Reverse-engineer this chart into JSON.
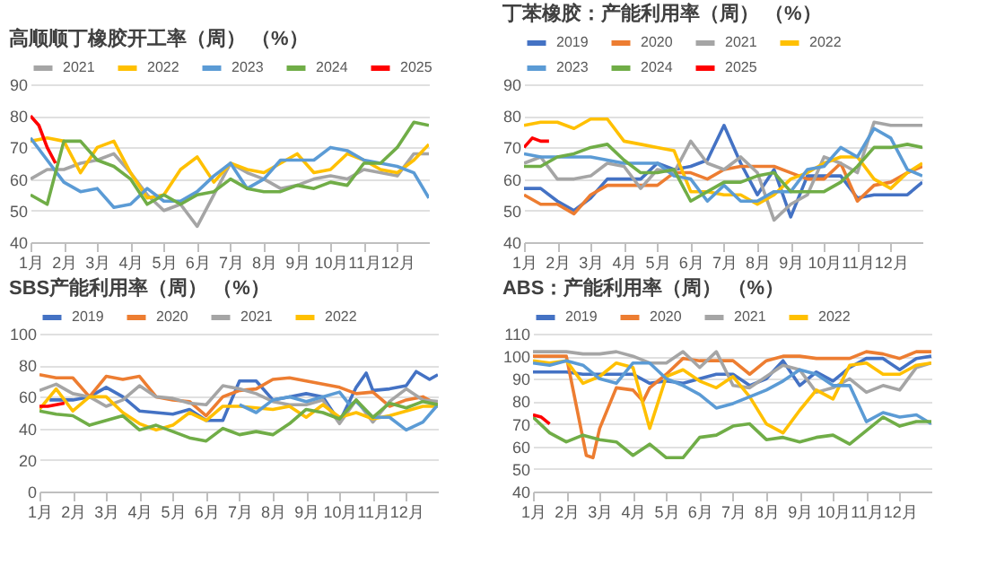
{
  "chart_data": [
    {
      "type": "line",
      "title": "高顺顺丁橡胶开工率（周） （%）",
      "legend": "top",
      "grid": "y",
      "x": [
        1,
        1.5,
        2,
        2.5,
        3,
        3.5,
        4,
        4.5,
        5,
        5.5,
        6,
        6.5,
        7,
        7.5,
        8,
        8.5,
        9,
        9.5,
        10,
        10.5,
        11,
        11.5,
        12,
        12.5,
        12.95
      ],
      "xlim": [
        1,
        12.95
      ],
      "xticks": [
        {
          "value": 1,
          "label": "1月"
        },
        {
          "value": 2,
          "label": "2月"
        },
        {
          "value": 3,
          "label": "3月"
        },
        {
          "value": 4,
          "label": "4月"
        },
        {
          "value": 5,
          "label": "5月"
        },
        {
          "value": 6,
          "label": "6月"
        },
        {
          "value": 7,
          "label": "7月"
        },
        {
          "value": 8,
          "label": "8月"
        },
        {
          "value": 9,
          "label": "9月"
        },
        {
          "value": 10,
          "label": "10月"
        },
        {
          "value": 11,
          "label": "11月"
        },
        {
          "value": 12,
          "label": "12月"
        }
      ],
      "ylim": [
        40,
        90
      ],
      "yticks": [
        40,
        50,
        60,
        70,
        80,
        90
      ],
      "series": [
        {
          "name": "2021",
          "color": "#a5a5a5",
          "values": [
            60,
            63,
            63,
            65,
            66,
            68,
            62,
            55,
            50,
            52,
            45,
            55,
            65,
            62,
            60,
            57,
            58,
            60,
            61,
            60,
            63,
            62,
            61,
            68,
            68
          ]
        },
        {
          "name": "2022",
          "color": "#ffc000",
          "values": [
            72,
            73,
            72,
            62,
            70,
            72,
            62,
            54,
            55,
            63,
            67,
            59,
            65,
            63,
            62,
            65,
            68,
            62,
            63,
            68,
            66,
            63,
            62,
            66,
            71
          ]
        },
        {
          "name": "2023",
          "color": "#5b9bd5",
          "values": [
            73,
            66,
            59,
            56,
            57,
            51,
            52,
            57,
            53,
            53,
            56,
            61,
            65,
            57,
            60,
            66,
            66,
            66,
            70,
            69,
            66,
            65,
            64,
            62,
            54
          ]
        },
        {
          "name": "2024",
          "color": "#70ad47",
          "values": [
            55,
            52,
            72,
            72,
            66,
            64,
            60,
            52,
            55,
            52,
            55,
            56,
            60,
            57,
            56,
            56,
            58,
            57,
            59,
            58,
            65,
            65,
            70,
            78,
            77
          ]
        },
        {
          "name": "2025",
          "color": "#ff0000",
          "x": [
            1,
            1.25,
            1.5,
            1.75
          ],
          "values": [
            80,
            77,
            70,
            65
          ]
        }
      ]
    },
    {
      "type": "line",
      "title": "丁苯橡胶：产能利用率（周） （%）",
      "legend": "top",
      "grid": "y",
      "x": [
        1,
        1.5,
        2,
        2.5,
        3,
        3.5,
        4,
        4.5,
        5,
        5.5,
        6,
        6.5,
        7,
        7.5,
        8,
        8.5,
        9,
        9.5,
        10,
        10.5,
        11,
        11.5,
        12,
        12.5,
        12.95
      ],
      "xlim": [
        1,
        12.95
      ],
      "xticks": [
        {
          "value": 1,
          "label": "1月"
        },
        {
          "value": 2,
          "label": "2月"
        },
        {
          "value": 3,
          "label": "3月"
        },
        {
          "value": 4,
          "label": "4月"
        },
        {
          "value": 5,
          "label": "5月"
        },
        {
          "value": 6,
          "label": "6月"
        },
        {
          "value": 7,
          "label": "7月"
        },
        {
          "value": 8,
          "label": "8月"
        },
        {
          "value": 9,
          "label": "9月"
        },
        {
          "value": 10,
          "label": "10月"
        },
        {
          "value": 11,
          "label": "11月"
        },
        {
          "value": 12,
          "label": "12月"
        }
      ],
      "ylim": [
        40,
        90
      ],
      "yticks": [
        40,
        50,
        60,
        70,
        80,
        90
      ],
      "series": [
        {
          "name": "2019",
          "color": "#4472c4",
          "values": [
            57,
            57,
            53,
            50,
            54,
            60,
            60,
            60,
            65,
            63,
            64,
            66,
            77,
            65,
            55,
            63,
            48,
            61,
            61,
            61,
            54,
            55,
            55,
            55,
            59
          ]
        },
        {
          "name": "2020",
          "color": "#ed7d31",
          "values": [
            55,
            52,
            52,
            49,
            55,
            58,
            58,
            58,
            58,
            62,
            62,
            60,
            63,
            64,
            64,
            64,
            62,
            60,
            60,
            65,
            53,
            58,
            59,
            62,
            64
          ]
        },
        {
          "name": "2021",
          "color": "#a5a5a5",
          "values": [
            65,
            67,
            60,
            60,
            61,
            65,
            64,
            57,
            63,
            62,
            72,
            65,
            63,
            67,
            62,
            47,
            52,
            55,
            67,
            65,
            62,
            78,
            77,
            77,
            77
          ]
        },
        {
          "name": "2022",
          "color": "#ffc000",
          "values": [
            77,
            78,
            78,
            76,
            79,
            79,
            72,
            71,
            70,
            69,
            56,
            56,
            55,
            55,
            52,
            55,
            60,
            62,
            65,
            67,
            67,
            60,
            57,
            62,
            65
          ]
        },
        {
          "name": "2023",
          "color": "#5b9bd5",
          "values": [
            68,
            67,
            67,
            67,
            67,
            66,
            65,
            65,
            65,
            61,
            60,
            53,
            58,
            53,
            53,
            56,
            56,
            63,
            64,
            70,
            67,
            76,
            73,
            63,
            61
          ]
        },
        {
          "name": "2024",
          "color": "#70ad47",
          "values": [
            64,
            64,
            67,
            68,
            70,
            71,
            66,
            62,
            62,
            63,
            53,
            56,
            59,
            59,
            61,
            62,
            56,
            56,
            56,
            59,
            64,
            70,
            70,
            71,
            70
          ]
        },
        {
          "name": "2025",
          "color": "#ff0000",
          "x": [
            1,
            1.25,
            1.5,
            1.75
          ],
          "values": [
            70,
            73,
            72,
            72
          ]
        }
      ]
    },
    {
      "type": "line",
      "title": "SBS产能利用率（周） （%）",
      "legend": "top",
      "grid": "y",
      "x": [
        1,
        1.5,
        2,
        2.5,
        3,
        3.5,
        4,
        4.5,
        5,
        5.5,
        6,
        6.5,
        7,
        7.5,
        8,
        8.5,
        9,
        9.5,
        10,
        10.5,
        11,
        11.5,
        12,
        12.5,
        12.95
      ],
      "xlim": [
        1,
        12.95
      ],
      "xticks": [
        {
          "value": 1,
          "label": "1月"
        },
        {
          "value": 2,
          "label": "2月"
        },
        {
          "value": 3,
          "label": "3月"
        },
        {
          "value": 4,
          "label": "4月"
        },
        {
          "value": 5,
          "label": "5月"
        },
        {
          "value": 6,
          "label": "6月"
        },
        {
          "value": 7,
          "label": "7月"
        },
        {
          "value": 8,
          "label": "8月"
        },
        {
          "value": 9,
          "label": "9月"
        },
        {
          "value": 10,
          "label": "10月"
        },
        {
          "value": 11,
          "label": "11月"
        },
        {
          "value": 12,
          "label": "12月"
        }
      ],
      "ylim": [
        0,
        100
      ],
      "yticks": [
        0,
        20,
        40,
        60,
        80,
        100
      ],
      "series": [
        {
          "name": "2019",
          "color": "#4472c4",
          "x": [
            1.3,
            1.5,
            2,
            2.5,
            3,
            3.5,
            4,
            4.5,
            5,
            5.5,
            6,
            6.5,
            7,
            7.5,
            8,
            8.5,
            9,
            9.5,
            10,
            10.5,
            10.8,
            11,
            11.5,
            12,
            12.3,
            12.7,
            12.95
          ],
          "values": [
            58,
            58,
            58,
            60,
            66,
            60,
            51,
            50,
            49,
            52,
            45,
            45,
            70,
            70,
            58,
            60,
            62,
            60,
            44,
            66,
            75,
            64,
            65,
            67,
            76,
            71,
            74
          ]
        },
        {
          "name": "2020",
          "color": "#ed7d31",
          "values": [
            74,
            72,
            72,
            60,
            73,
            71,
            73,
            60,
            58,
            57,
            48,
            60,
            64,
            65,
            71,
            72,
            70,
            68,
            66,
            62,
            63,
            54,
            58,
            60,
            55
          ]
        },
        {
          "name": "2021",
          "color": "#a5a5a5",
          "values": [
            64,
            68,
            62,
            60,
            54,
            58,
            67,
            60,
            59,
            56,
            55,
            67,
            65,
            62,
            57,
            55,
            55,
            58,
            43,
            58,
            44,
            57,
            65,
            58,
            57
          ]
        },
        {
          "name": "2022",
          "color": "#ffc000",
          "values": [
            52,
            65,
            51,
            60,
            60,
            50,
            43,
            39,
            42,
            50,
            45,
            54,
            54,
            53,
            52,
            54,
            47,
            55,
            47,
            50,
            46,
            48,
            51,
            54,
            54
          ]
        },
        {
          "color": "#5b9bd5",
          "x": [
            7,
            7.5,
            8,
            8.5,
            9,
            9.5,
            10,
            10.3,
            10.5,
            11,
            11.5,
            12,
            12.5,
            12.95
          ],
          "values": [
            55,
            50,
            58,
            60,
            57,
            60,
            63,
            55,
            57,
            47,
            47,
            39,
            44,
            55
          ]
        },
        {
          "color": "#70ad47",
          "values": [
            51,
            49,
            48,
            42,
            45,
            48,
            39,
            42,
            38,
            34,
            32,
            40,
            36,
            38,
            36,
            43,
            52,
            50,
            46,
            58,
            47,
            56,
            53,
            57,
            55
          ]
        },
        {
          "color": "#ff0000",
          "x": [
            1,
            1.25,
            1.5,
            1.75
          ],
          "values": [
            54,
            54,
            55,
            56
          ]
        }
      ]
    },
    {
      "type": "line",
      "title": "ABS：产能利用率（周） （%）",
      "legend": "top",
      "grid": "y",
      "x": [
        1,
        1.5,
        2,
        2.5,
        3,
        3.5,
        4,
        4.5,
        5,
        5.5,
        6,
        6.5,
        7,
        7.5,
        8,
        8.5,
        9,
        9.5,
        10,
        10.5,
        11,
        11.5,
        12,
        12.5,
        12.95
      ],
      "xlim": [
        1,
        12.95
      ],
      "xticks": [
        {
          "value": 1,
          "label": "1月"
        },
        {
          "value": 2,
          "label": "2月"
        },
        {
          "value": 3,
          "label": "3月"
        },
        {
          "value": 4,
          "label": "4月"
        },
        {
          "value": 5,
          "label": "5月"
        },
        {
          "value": 6,
          "label": "6月"
        },
        {
          "value": 7,
          "label": "7月"
        },
        {
          "value": 8,
          "label": "8月"
        },
        {
          "value": 9,
          "label": "9月"
        },
        {
          "value": 10,
          "label": "10月"
        },
        {
          "value": 11,
          "label": "11月"
        },
        {
          "value": 12,
          "label": "12月"
        }
      ],
      "ylim": [
        40,
        110
      ],
      "yticks": [
        40,
        50,
        60,
        70,
        80,
        90,
        100,
        110
      ],
      "series": [
        {
          "name": "2019",
          "color": "#4472c4",
          "values": [
            93,
            93,
            93,
            92,
            92,
            92,
            92,
            88,
            89,
            88,
            90,
            92,
            92,
            87,
            90,
            98,
            87,
            93,
            89,
            95,
            99,
            99,
            94,
            99,
            100
          ]
        },
        {
          "name": "2020",
          "color": "#ed7d31",
          "x": [
            1,
            1.5,
            2,
            2.3,
            2.6,
            2.8,
            3,
            3.5,
            4,
            4.3,
            4.5,
            5,
            5.5,
            6,
            6.5,
            7,
            7.5,
            8,
            8.5,
            9,
            9.5,
            10,
            10.5,
            11,
            11.5,
            12,
            12.5,
            12.95
          ],
          "values": [
            100,
            100,
            100,
            78,
            56,
            55,
            68,
            86,
            85,
            80,
            86,
            92,
            99,
            98,
            98,
            98,
            92,
            98,
            100,
            100,
            99,
            99,
            99,
            102,
            101,
            99,
            102,
            102
          ]
        },
        {
          "name": "2021",
          "color": "#a5a5a5",
          "values": [
            102,
            102,
            102,
            101,
            101,
            102,
            100,
            97,
            97,
            102,
            95,
            102,
            87,
            86,
            91,
            96,
            94,
            84,
            86,
            90,
            84,
            87,
            85,
            95,
            97
          ]
        },
        {
          "name": "2022",
          "color": "#ffc000",
          "values": [
            98,
            97,
            98,
            88,
            91,
            97,
            95,
            68,
            91,
            94,
            89,
            86,
            91,
            82,
            70,
            66,
            76,
            85,
            81,
            96,
            97,
            92,
            92,
            96,
            97
          ]
        },
        {
          "color": "#5b9bd5",
          "values": [
            97,
            96,
            98,
            96,
            90,
            88,
            97,
            97,
            90,
            87,
            83,
            77,
            79,
            82,
            85,
            89,
            94,
            92,
            87,
            87,
            71,
            75,
            73,
            74,
            70
          ]
        },
        {
          "color": "#70ad47",
          "values": [
            73,
            66,
            62,
            65,
            63,
            62,
            56,
            61,
            55,
            55,
            64,
            65,
            69,
            70,
            63,
            64,
            62,
            64,
            65,
            61,
            67,
            73,
            69,
            71,
            71
          ]
        },
        {
          "color": "#ff0000",
          "x": [
            1,
            1.25,
            1.5
          ],
          "values": [
            74,
            73,
            70
          ]
        }
      ]
    }
  ]
}
